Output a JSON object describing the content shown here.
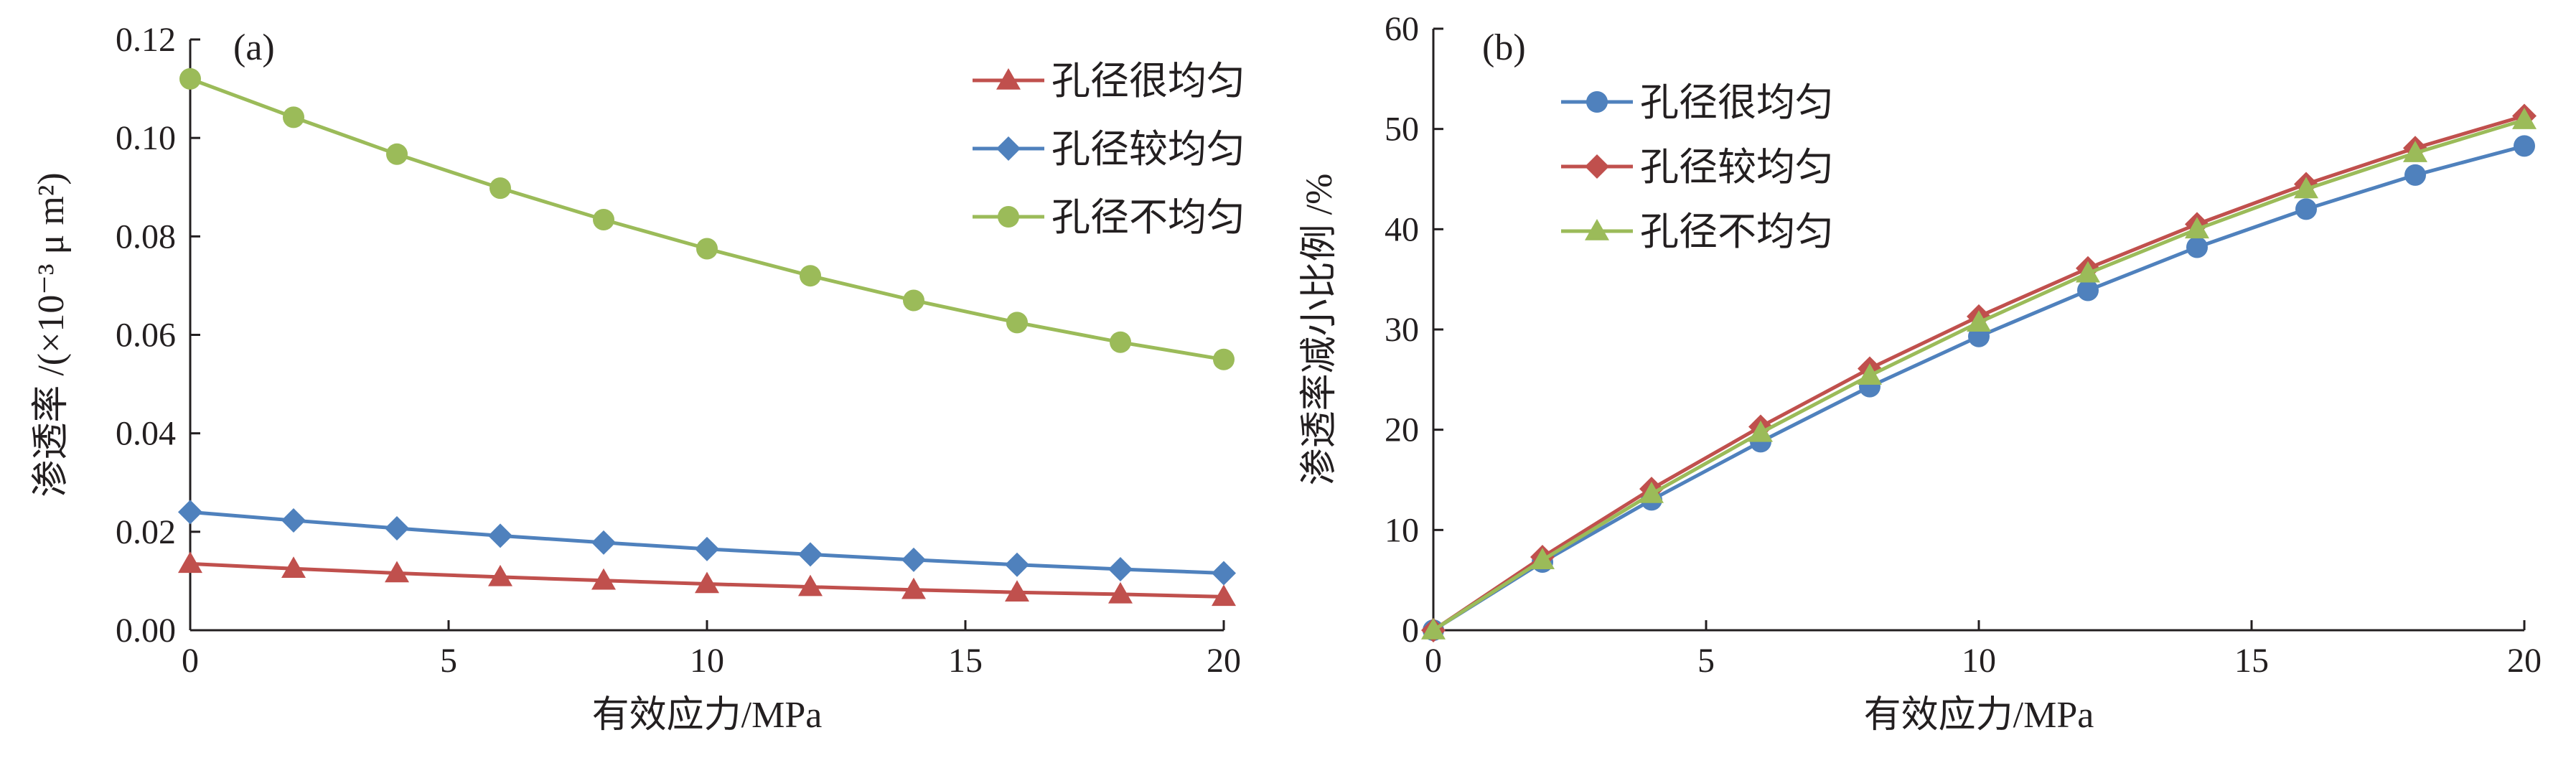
{
  "colors": {
    "red": "#c0504d",
    "blue": "#4f81bd",
    "green": "#9bbb59",
    "axis": "#231f20"
  },
  "chart_data": [
    {
      "type": "line",
      "panel_label": "(a)",
      "xlabel": "有效应力/MPa",
      "ylabel": "渗透率 /(×10⁻³ μ m²)",
      "xlim": [
        0,
        20
      ],
      "ylim": [
        0,
        0.12
      ],
      "xticks": [
        "0",
        "5",
        "10",
        "15",
        "20"
      ],
      "yticks": [
        "0.00",
        "0.02",
        "0.04",
        "0.06",
        "0.08",
        "0.10",
        "0.12"
      ],
      "legend_position": "top-right",
      "grid": false,
      "x": [
        0,
        2,
        4,
        6,
        8,
        10,
        12,
        14,
        16,
        18,
        20
      ],
      "series": [
        {
          "name": "孔径很均匀",
          "color": "red",
          "marker": "triangle",
          "values": [
            0.0135,
            0.0125,
            0.0116,
            0.0108,
            0.0101,
            0.0094,
            0.0088,
            0.0082,
            0.0077,
            0.0073,
            0.0068
          ]
        },
        {
          "name": "孔径较均匀",
          "color": "blue",
          "marker": "diamond",
          "values": [
            0.024,
            0.0223,
            0.0207,
            0.0192,
            0.0178,
            0.0165,
            0.0154,
            0.0143,
            0.0133,
            0.0124,
            0.0116
          ]
        },
        {
          "name": "孔径不均匀",
          "color": "green",
          "marker": "circle",
          "values": [
            0.112,
            0.1042,
            0.0967,
            0.0898,
            0.0834,
            0.0775,
            0.072,
            0.067,
            0.0625,
            0.0585,
            0.055
          ]
        }
      ]
    },
    {
      "type": "line",
      "panel_label": "(b)",
      "xlabel": "有效应力/MPa",
      "ylabel": "渗透率减小比例 /%",
      "xlim": [
        0,
        20
      ],
      "ylim": [
        0,
        60
      ],
      "xticks": [
        "0",
        "5",
        "10",
        "15",
        "20"
      ],
      "yticks": [
        "0",
        "10",
        "20",
        "30",
        "40",
        "50",
        "60"
      ],
      "legend_position": "top-left",
      "grid": false,
      "x": [
        0,
        2,
        4,
        6,
        8,
        10,
        12,
        14,
        16,
        18,
        20
      ],
      "series": [
        {
          "name": "孔径很均匀",
          "color": "blue",
          "marker": "circle",
          "values": [
            0,
            6.8,
            13.0,
            18.8,
            24.3,
            29.3,
            33.9,
            38.2,
            42.0,
            45.4,
            48.3
          ]
        },
        {
          "name": "孔径较均匀",
          "color": "red",
          "marker": "diamond",
          "values": [
            0,
            7.3,
            14.1,
            20.3,
            26.1,
            31.3,
            36.1,
            40.5,
            44.5,
            48.1,
            51.3
          ]
        },
        {
          "name": "孔径不均匀",
          "color": "green",
          "marker": "triangle",
          "values": [
            0,
            7.0,
            13.6,
            19.7,
            25.4,
            30.7,
            35.6,
            40.0,
            44.0,
            47.6,
            50.9
          ]
        }
      ]
    }
  ]
}
